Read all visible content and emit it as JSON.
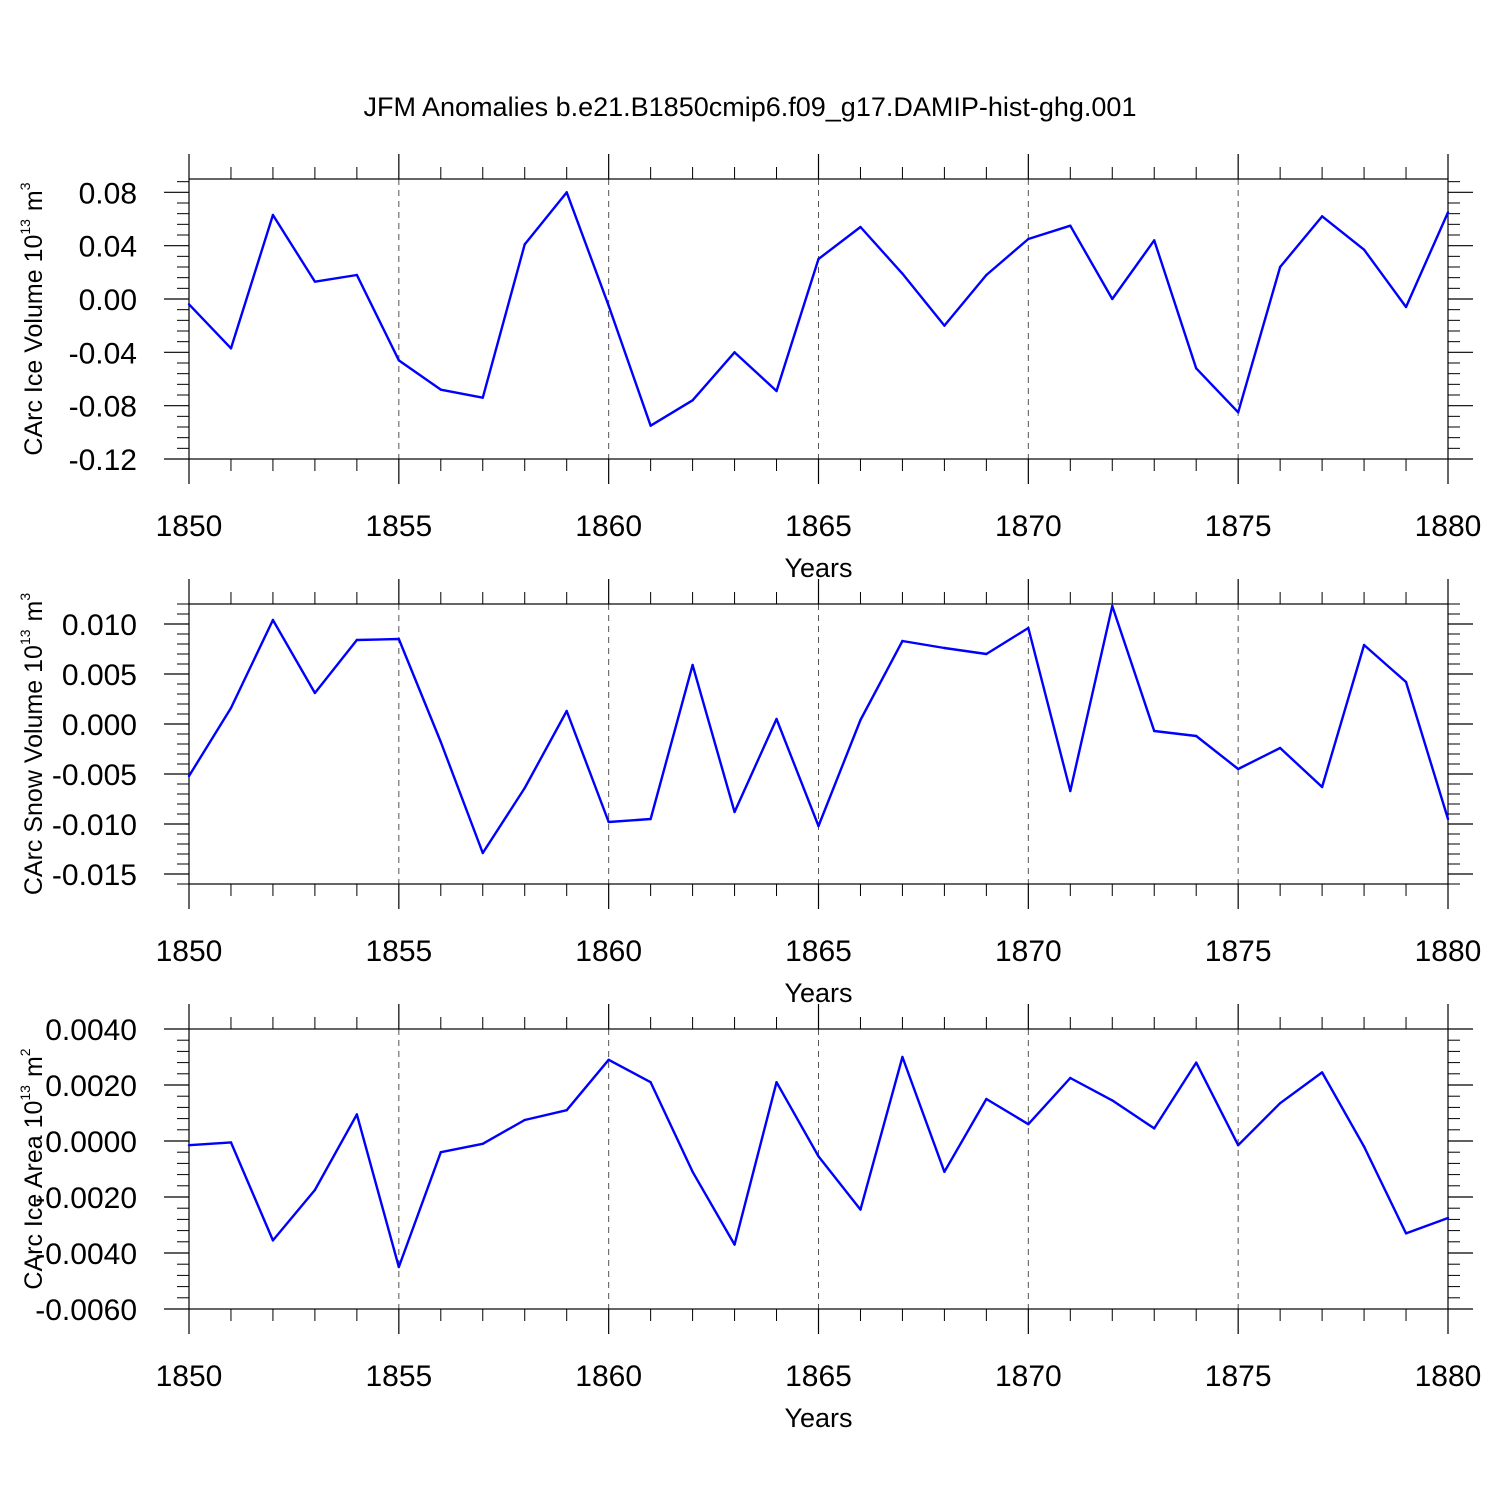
{
  "title": "JFM Anomalies b.e21.B1850cmip6.f09_g17.DAMIP-hist-ghg.001",
  "colors": {
    "line": "#0000ff",
    "axes": "#000000",
    "grid": "#555555",
    "background": "#ffffff"
  },
  "chart_data": [
    {
      "type": "line",
      "ylabel": {
        "main": "CArc Ice Volume 10",
        "exp": "13",
        "unit": "m",
        "unit_exp": "3"
      },
      "xlabel": "Years",
      "xlim": [
        1850,
        1880
      ],
      "ylim": [
        -0.12,
        0.09
      ],
      "yticks": [
        -0.12,
        -0.08,
        -0.04,
        0.0,
        0.04,
        0.08
      ],
      "ytick_labels": [
        "-0.12",
        "-0.08",
        "-0.04",
        "0.00",
        "0.04",
        "0.08"
      ],
      "yminor_step": 0.008,
      "xticks": [
        1850,
        1855,
        1860,
        1865,
        1870,
        1875,
        1880
      ],
      "xtick_labels": [
        "1850",
        "1855",
        "1860",
        "1865",
        "1870",
        "1875",
        "1880"
      ],
      "grid_vertical_dashed": true,
      "x": [
        1850,
        1851,
        1852,
        1853,
        1854,
        1855,
        1856,
        1857,
        1858,
        1859,
        1860,
        1861,
        1862,
        1863,
        1864,
        1865,
        1866,
        1867,
        1868,
        1869,
        1870,
        1871,
        1872,
        1873,
        1874,
        1875,
        1876,
        1877,
        1878,
        1879,
        1880
      ],
      "values": [
        -0.004,
        -0.037,
        0.063,
        0.013,
        0.018,
        -0.046,
        -0.068,
        -0.074,
        0.041,
        0.08,
        -0.005,
        -0.095,
        -0.076,
        -0.04,
        -0.069,
        0.03,
        0.054,
        0.019,
        -0.02,
        0.018,
        0.045,
        0.055,
        0.0,
        0.044,
        -0.052,
        -0.085,
        0.024,
        0.062,
        0.037,
        -0.006,
        0.065
      ]
    },
    {
      "type": "line",
      "ylabel": {
        "main": "CArc Snow Volume 10",
        "exp": "13",
        "unit": "m",
        "unit_exp": "3"
      },
      "xlabel": "Years",
      "xlim": [
        1850,
        1880
      ],
      "ylim": [
        -0.016,
        0.012
      ],
      "yticks": [
        -0.015,
        -0.01,
        -0.005,
        0.0,
        0.005,
        0.01
      ],
      "ytick_labels": [
        "-0.015",
        "-0.010",
        "-0.005",
        "0.000",
        "0.005",
        "0.010"
      ],
      "yminor_step": 0.001,
      "xticks": [
        1850,
        1855,
        1860,
        1865,
        1870,
        1875,
        1880
      ],
      "xtick_labels": [
        "1850",
        "1855",
        "1860",
        "1865",
        "1870",
        "1875",
        "1880"
      ],
      "grid_vertical_dashed": true,
      "x": [
        1850,
        1851,
        1852,
        1853,
        1854,
        1855,
        1856,
        1857,
        1858,
        1859,
        1860,
        1861,
        1862,
        1863,
        1864,
        1865,
        1866,
        1867,
        1868,
        1869,
        1870,
        1871,
        1872,
        1873,
        1874,
        1875,
        1876,
        1877,
        1878,
        1879,
        1880
      ],
      "values": [
        -0.0052,
        0.0016,
        0.0104,
        0.0031,
        0.0084,
        0.0085,
        -0.0018,
        -0.0129,
        -0.0064,
        0.0013,
        -0.0098,
        -0.0095,
        0.0059,
        -0.0088,
        0.0005,
        -0.0102,
        0.0004,
        0.0083,
        0.0076,
        0.007,
        0.0096,
        -0.0067,
        0.0118,
        -0.0007,
        -0.0012,
        -0.0045,
        -0.0024,
        -0.0063,
        0.0079,
        0.0042,
        -0.0095
      ]
    },
    {
      "type": "line",
      "ylabel": {
        "main": "CArc Ice Area 10",
        "exp": "13",
        "unit": "m",
        "unit_exp": "2"
      },
      "xlabel": "Years",
      "xlim": [
        1850,
        1880
      ],
      "ylim": [
        -0.006,
        0.004
      ],
      "yticks": [
        -0.006,
        -0.004,
        -0.002,
        0.0,
        0.002,
        0.004
      ],
      "ytick_labels": [
        "-0.0060",
        "-0.0040",
        "-0.0020",
        "0.0000",
        "0.0020",
        "0.0040"
      ],
      "yminor_step": 0.0004,
      "xticks": [
        1850,
        1855,
        1860,
        1865,
        1870,
        1875,
        1880
      ],
      "xtick_labels": [
        "1850",
        "1855",
        "1860",
        "1865",
        "1870",
        "1875",
        "1880"
      ],
      "grid_vertical_dashed": true,
      "x": [
        1850,
        1851,
        1852,
        1853,
        1854,
        1855,
        1856,
        1857,
        1858,
        1859,
        1860,
        1861,
        1862,
        1863,
        1864,
        1865,
        1866,
        1867,
        1868,
        1869,
        1870,
        1871,
        1872,
        1873,
        1874,
        1875,
        1876,
        1877,
        1878,
        1879,
        1880
      ],
      "values": [
        -0.00015,
        -5e-05,
        -0.00355,
        -0.00175,
        0.00095,
        -0.0045,
        -0.0004,
        -0.0001,
        0.00075,
        0.0011,
        0.0029,
        0.0021,
        -0.0011,
        -0.0037,
        0.0021,
        -0.00055,
        -0.00245,
        0.003,
        -0.0011,
        0.0015,
        0.0006,
        0.00225,
        0.00145,
        0.00045,
        0.0028,
        -0.00015,
        0.00135,
        0.00245,
        -0.0002,
        -0.0033,
        -0.00275
      ]
    }
  ]
}
